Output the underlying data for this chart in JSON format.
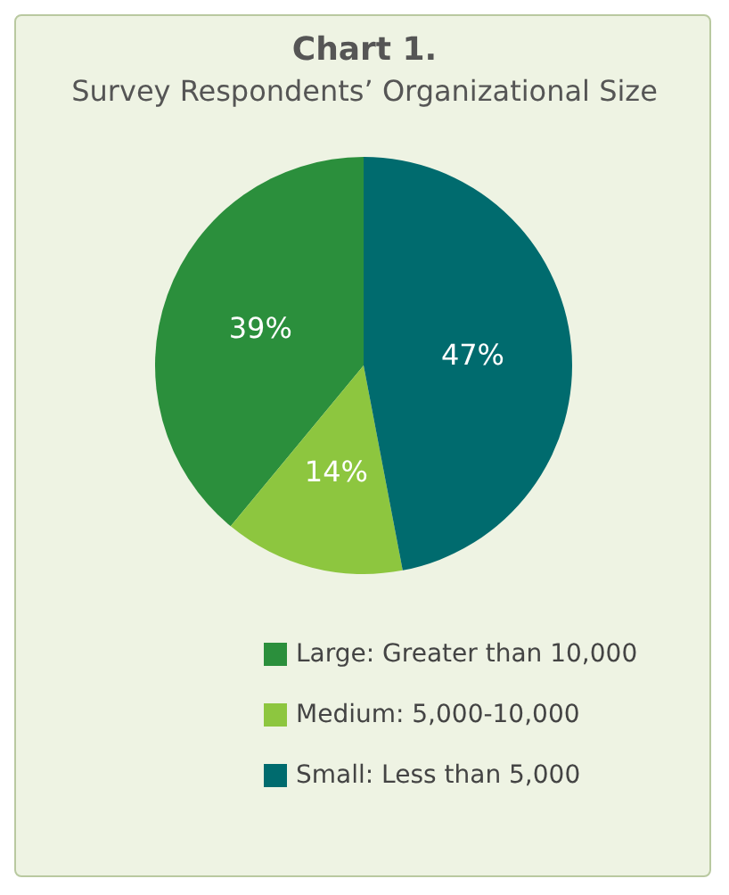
{
  "chart_data": {
    "type": "pie",
    "title": "Chart 1.",
    "subtitle": "Survey Respondents’ Organizational Size",
    "categories": [
      "Large: Greater than 10,000",
      "Medium: 5,000-10,000",
      "Small: Less than 5,000"
    ],
    "values": [
      39,
      14,
      47
    ],
    "colors": [
      "#2b8f3c",
      "#8dc63f",
      "#006b6e"
    ],
    "value_labels": [
      "39%",
      "14%",
      "47%"
    ],
    "legend": "bottom"
  }
}
